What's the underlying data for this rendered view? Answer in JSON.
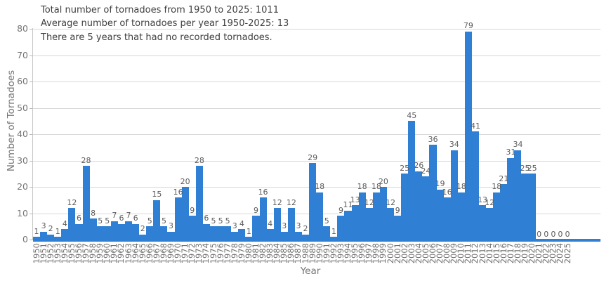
{
  "overview": {
    "line1": "Total number of tornadoes from 1950 to 2025: 1011",
    "line2": "Average number of tornadoes per year 1950-2025: 13",
    "line3": "There are 5 years that had no recorded tornadoes."
  },
  "chart_data": {
    "type": "bar",
    "title": "",
    "xlabel": "Year",
    "ylabel": "Number of Tornadoes",
    "categories": [
      1950,
      1951,
      1952,
      1953,
      1954,
      1955,
      1956,
      1957,
      1958,
      1959,
      1960,
      1961,
      1962,
      1963,
      1964,
      1965,
      1966,
      1967,
      1968,
      1969,
      1970,
      1971,
      1972,
      1973,
      1974,
      1975,
      1976,
      1977,
      1978,
      1979,
      1980,
      1981,
      1982,
      1983,
      1984,
      1985,
      1986,
      1987,
      1988,
      1989,
      1990,
      1991,
      1992,
      1993,
      1994,
      1995,
      1996,
      1997,
      1998,
      1999,
      2000,
      2001,
      2002,
      2003,
      2004,
      2005,
      2006,
      2007,
      2008,
      2009,
      2010,
      2011,
      2012,
      2013,
      2014,
      2015,
      2016,
      2017,
      2018,
      2019,
      2020,
      2021,
      2022,
      2023,
      2024,
      2025
    ],
    "values": [
      1,
      3,
      2,
      1,
      4,
      12,
      6,
      28,
      8,
      5,
      5,
      7,
      6,
      7,
      6,
      2,
      5,
      15,
      5,
      3,
      16,
      20,
      9,
      28,
      6,
      5,
      5,
      5,
      3,
      4,
      1,
      9,
      16,
      4,
      12,
      3,
      12,
      3,
      2,
      29,
      18,
      5,
      1,
      9,
      11,
      13,
      18,
      12,
      18,
      20,
      12,
      9,
      25,
      45,
      26,
      24,
      36,
      19,
      16,
      34,
      18,
      79,
      41,
      13,
      12,
      18,
      21,
      31,
      34,
      25,
      25,
      0,
      0,
      0,
      0,
      0
    ],
    "ylim": [
      0,
      80
    ],
    "yticks": [
      0,
      10,
      20,
      30,
      40,
      50,
      60,
      70,
      80
    ],
    "grid": "horizontal",
    "legend": "none",
    "value_labels_shown": true,
    "x_tick_rotation_deg": 90
  },
  "colors": {
    "bar": "#2f80d4",
    "baseline": "#2f80d4",
    "grid": "#d8d8d8",
    "summary_text": "#3f3f3f",
    "tick_text": "#6f6f6f",
    "value_label_text": "#5d5d5d"
  }
}
